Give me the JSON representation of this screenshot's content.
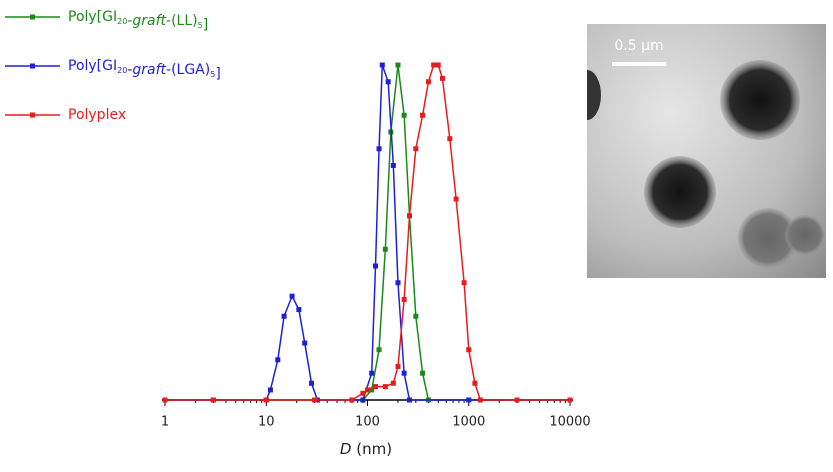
{
  "chart_data": {
    "type": "line",
    "log_x": true,
    "minor_ticks": true,
    "xlabel": "D (nm)",
    "xlim": [
      1,
      10000
    ],
    "xticks": [
      1,
      10,
      100,
      1000,
      10000
    ],
    "ylim": [
      0,
      100
    ],
    "series": [
      {
        "name": "Poly[GI20-graft-(LL)5]",
        "color": "#1a8a1a",
        "x": [
          1,
          3,
          10,
          30,
          90,
          110,
          130,
          150,
          170,
          200,
          230,
          260,
          300,
          350,
          400,
          1000,
          10000
        ],
        "values": [
          0,
          0,
          0,
          0,
          0,
          3,
          15,
          45,
          80,
          100,
          85,
          55,
          25,
          8,
          0,
          0,
          0
        ]
      },
      {
        "name": "Poly[GI20-graft-(LGA)5]",
        "color": "#1f1fd9",
        "x": [
          1,
          3,
          10,
          11,
          13,
          15,
          18,
          21,
          24,
          28,
          32,
          90,
          110,
          120,
          130,
          140,
          160,
          180,
          200,
          230,
          260,
          1000,
          10000
        ],
        "values": [
          0,
          0,
          0,
          3,
          12,
          25,
          31,
          27,
          17,
          5,
          0,
          0,
          8,
          40,
          75,
          100,
          95,
          70,
          35,
          8,
          0,
          0,
          0
        ]
      },
      {
        "name": "Polyplex",
        "color": "#e81c1c",
        "x": [
          1,
          3,
          10,
          30,
          70,
          90,
          100,
          120,
          150,
          180,
          200,
          230,
          260,
          300,
          350,
          400,
          450,
          500,
          550,
          650,
          750,
          900,
          1000,
          1150,
          1300,
          3000,
          10000
        ],
        "values": [
          0,
          0,
          0,
          0,
          0,
          2,
          3,
          4,
          4,
          5,
          10,
          30,
          55,
          75,
          85,
          95,
          100,
          100,
          96,
          78,
          60,
          35,
          15,
          5,
          0,
          0,
          0
        ]
      }
    ]
  },
  "inset": {
    "scale_bar": "0.5 µm"
  }
}
